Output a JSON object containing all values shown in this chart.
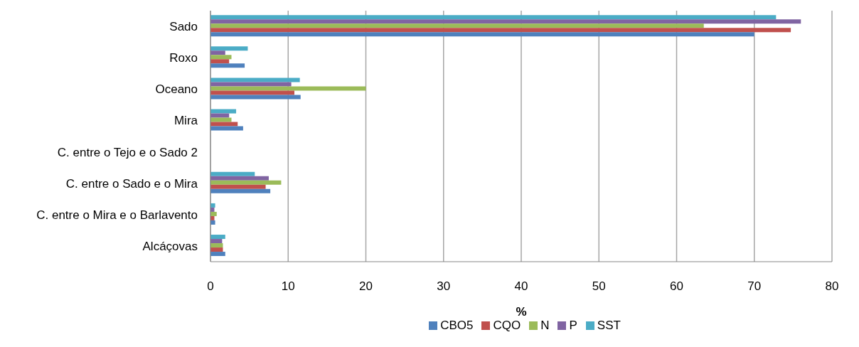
{
  "chart_data": {
    "type": "bar",
    "orientation": "horizontal",
    "xlabel": "%",
    "categories": [
      "Sado",
      "Roxo",
      "Oceano",
      "Mira",
      "C. entre o Tejo e o Sado 2",
      "C. entre o Sado e o Mira",
      "C. entre o Mira e o Barlavento",
      "Alcáçovas"
    ],
    "series": [
      {
        "name": "CBO5",
        "color": "#4f81bd",
        "values": [
          70,
          4.4,
          11.6,
          4.2,
          0,
          7.7,
          0.6,
          1.9
        ]
      },
      {
        "name": "CQO",
        "color": "#c0504d",
        "values": [
          74.7,
          2.4,
          10.8,
          3.5,
          0,
          7.1,
          0.5,
          1.6
        ]
      },
      {
        "name": "N",
        "color": "#9bbb59",
        "values": [
          63.5,
          2.7,
          20,
          2.7,
          0,
          9.1,
          0.8,
          1.6
        ]
      },
      {
        "name": "P",
        "color": "#8064a2",
        "values": [
          76,
          1.9,
          10.4,
          2.4,
          0,
          7.5,
          0.5,
          1.5
        ]
      },
      {
        "name": "SST",
        "color": "#4bacc6",
        "values": [
          72.8,
          4.8,
          11.5,
          3.3,
          0,
          5.7,
          0.6,
          1.9
        ]
      }
    ],
    "xlim": [
      0,
      80
    ],
    "xticks": [
      0,
      10,
      20,
      30,
      40,
      50,
      60,
      70,
      80
    ],
    "grid": "x",
    "legend": "bottom"
  }
}
